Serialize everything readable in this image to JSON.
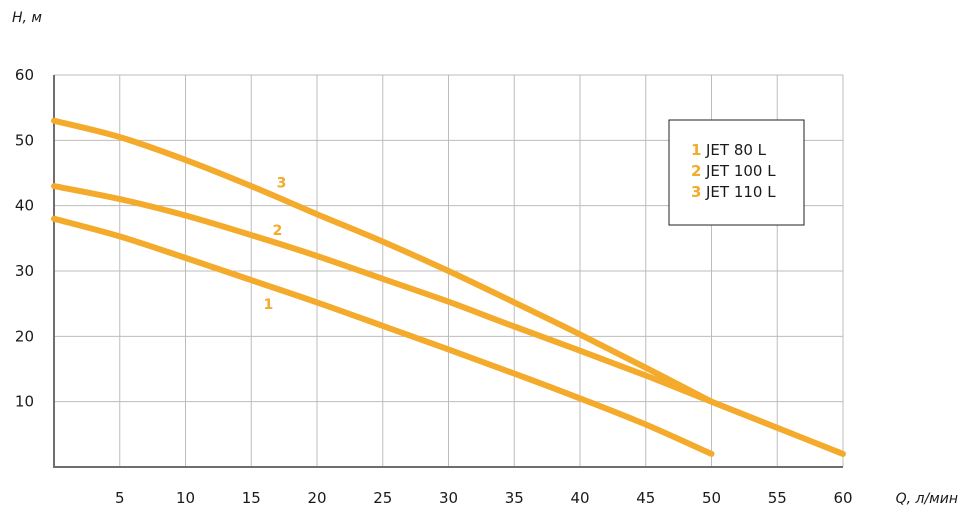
{
  "chart_data": {
    "type": "line",
    "xlabel": "Q, л/мин",
    "ylabel": "H, м",
    "xlim": [
      0,
      60
    ],
    "ylim": [
      0,
      60
    ],
    "x_ticks": [
      5,
      10,
      15,
      20,
      25,
      30,
      35,
      40,
      45,
      50,
      55,
      60
    ],
    "y_ticks": [
      10,
      20,
      30,
      40,
      50,
      60
    ],
    "grid": true,
    "legend_position": "top-right",
    "color": "#f4aa2a",
    "series": [
      {
        "id": "1",
        "name": "JET 80 L",
        "x": [
          0,
          5,
          10,
          15,
          20,
          25,
          30,
          35,
          40,
          45,
          50
        ],
        "y": [
          38,
          35.3,
          32,
          28.6,
          25.2,
          21.6,
          18,
          14.3,
          10.5,
          6.5,
          2
        ]
      },
      {
        "id": "2",
        "name": "JET 100 L",
        "x": [
          0,
          5,
          10,
          15,
          20,
          25,
          30,
          35,
          40,
          45,
          50,
          55,
          60
        ],
        "y": [
          43,
          41,
          38.5,
          35.5,
          32.3,
          28.8,
          25.3,
          21.5,
          17.8,
          14,
          10,
          6,
          2
        ]
      },
      {
        "id": "3",
        "name": "JET 110 L",
        "x": [
          0,
          5,
          10,
          15,
          20,
          25,
          30,
          35,
          40,
          45,
          50
        ],
        "y": [
          53,
          50.5,
          47,
          43,
          38.7,
          34.5,
          30,
          25.2,
          20.3,
          15.2,
          10
        ]
      }
    ]
  }
}
